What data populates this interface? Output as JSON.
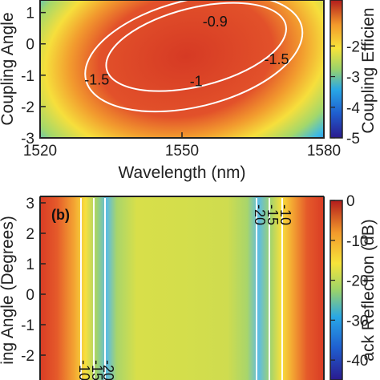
{
  "chart_data": [
    {
      "type": "heatmap",
      "panel_label": "",
      "xlabel": "Wavelength (nm)",
      "ylabel": "Coupling Angle",
      "colorbar_label": "Coupling Efficien",
      "x_ticks": [
        "1520",
        "1550",
        "1580"
      ],
      "y_ticks": [
        "1",
        "0",
        "-1",
        "-2",
        "-3"
      ],
      "colorbar_ticks": [
        "-2",
        "-3",
        "-4",
        "-5"
      ],
      "xlim": [
        1520,
        1580
      ],
      "ylim": [
        -3,
        1.4
      ],
      "clim": [
        -5,
        -0.5
      ],
      "contours": [
        {
          "level": -0.9,
          "label": "-0.9",
          "at": [
            1557,
            0.55
          ]
        },
        {
          "level": -1,
          "label": "-1",
          "at": [
            1553,
            -1.35
          ]
        },
        {
          "level": -1.5,
          "label": "-1.5",
          "at": [
            1532,
            -1.3
          ]
        },
        {
          "level": -1.5,
          "label": "-1.5",
          "at": [
            1570,
            -0.65
          ]
        }
      ]
    },
    {
      "type": "heatmap",
      "panel_label": "(b)",
      "xlabel": "",
      "ylabel": "ing Angle (Degrees)",
      "colorbar_label": "ack Reflection (dB)",
      "y_ticks": [
        "3",
        "2",
        "1",
        "0",
        "-1",
        "-2"
      ],
      "colorbar_ticks": [
        "0",
        "-10",
        "-20",
        "-30",
        "-40"
      ],
      "xlim": [
        1520,
        1580
      ],
      "ylim": [
        -3,
        3
      ],
      "clim": [
        -45,
        0
      ],
      "contours": [
        {
          "level": -10,
          "label": "-10",
          "side": "left"
        },
        {
          "level": -15,
          "label": "-15",
          "side": "left"
        },
        {
          "level": -20,
          "label": "-20",
          "side": "left"
        },
        {
          "level": -10,
          "label": "-10",
          "side": "right"
        },
        {
          "level": -15,
          "label": "-15",
          "side": "right"
        },
        {
          "level": -20,
          "label": "-20",
          "side": "right"
        }
      ]
    }
  ]
}
